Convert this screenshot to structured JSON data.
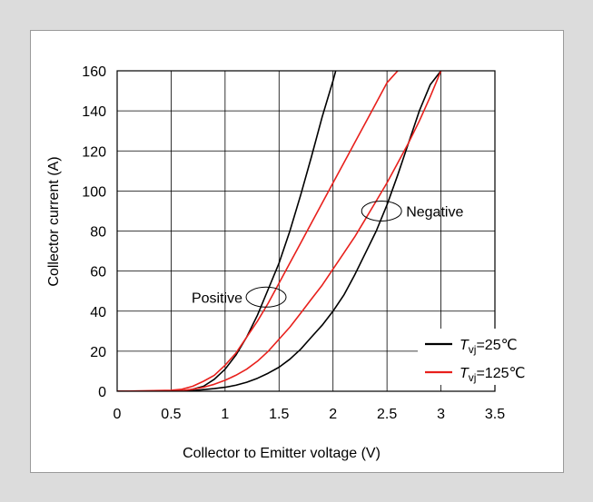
{
  "chart_data": {
    "type": "line",
    "xlabel": "Collector to Emitter voltage (V)",
    "ylabel": "Collector current (A)",
    "xlim": [
      0,
      3.5
    ],
    "ylim": [
      0,
      160
    ],
    "x_ticks": [
      "0",
      "0.5",
      "1",
      "1.5",
      "2",
      "2.5",
      "3",
      "3.5"
    ],
    "y_ticks": [
      "0",
      "20",
      "40",
      "60",
      "80",
      "100",
      "120",
      "140",
      "160"
    ],
    "grid": true,
    "legend_position": "bottom-right",
    "series": [
      {
        "name": "Tvj=25°C",
        "color": "#000000",
        "points": [
          [
            0,
            0
          ],
          [
            0.5,
            0
          ],
          [
            0.6,
            0.2
          ],
          [
            0.7,
            1
          ],
          [
            0.8,
            2.5
          ],
          [
            0.9,
            6
          ],
          [
            1.0,
            11
          ],
          [
            1.1,
            18
          ],
          [
            1.2,
            27
          ],
          [
            1.3,
            38
          ],
          [
            1.4,
            51
          ],
          [
            1.5,
            64
          ],
          [
            1.6,
            80
          ],
          [
            1.7,
            98
          ],
          [
            1.8,
            117
          ],
          [
            1.9,
            137
          ],
          [
            2.0,
            155
          ],
          [
            2.05,
            165
          ]
        ]
      },
      {
        "name": "Tvj=25°C",
        "color": "#000000",
        "points": [
          [
            0,
            0
          ],
          [
            0.6,
            0
          ],
          [
            0.7,
            0.3
          ],
          [
            0.8,
            0.8
          ],
          [
            0.9,
            1.3
          ],
          [
            1.0,
            2
          ],
          [
            1.1,
            3
          ],
          [
            1.2,
            4.5
          ],
          [
            1.3,
            6.5
          ],
          [
            1.4,
            9
          ],
          [
            1.5,
            12
          ],
          [
            1.6,
            16
          ],
          [
            1.7,
            21
          ],
          [
            1.8,
            27
          ],
          [
            1.9,
            33
          ],
          [
            2.0,
            40
          ],
          [
            2.1,
            48
          ],
          [
            2.2,
            58
          ],
          [
            2.3,
            69
          ],
          [
            2.4,
            80
          ],
          [
            2.5,
            93
          ],
          [
            2.6,
            108
          ],
          [
            2.7,
            124
          ],
          [
            2.8,
            140
          ],
          [
            2.9,
            153
          ],
          [
            3.0,
            160
          ]
        ]
      },
      {
        "name": "Tvj=125°C",
        "color": "#e8201c",
        "points": [
          [
            0,
            0
          ],
          [
            0.5,
            0.5
          ],
          [
            0.6,
            1
          ],
          [
            0.7,
            2.5
          ],
          [
            0.8,
            5
          ],
          [
            0.9,
            8
          ],
          [
            1.0,
            13
          ],
          [
            1.1,
            19
          ],
          [
            1.2,
            27
          ],
          [
            1.3,
            35
          ],
          [
            1.4,
            44
          ],
          [
            1.5,
            54
          ],
          [
            1.6,
            64
          ],
          [
            1.7,
            74
          ],
          [
            1.8,
            84
          ],
          [
            1.9,
            94
          ],
          [
            2.0,
            104
          ],
          [
            2.1,
            114
          ],
          [
            2.2,
            124
          ],
          [
            2.3,
            134
          ],
          [
            2.4,
            144
          ],
          [
            2.5,
            154
          ],
          [
            2.6,
            160
          ]
        ]
      },
      {
        "name": "Tvj=125°C",
        "color": "#e8201c",
        "points": [
          [
            0,
            0
          ],
          [
            0.5,
            0
          ],
          [
            0.6,
            0.3
          ],
          [
            0.7,
            1
          ],
          [
            0.8,
            2
          ],
          [
            0.9,
            3.5
          ],
          [
            1.0,
            5.5
          ],
          [
            1.1,
            8
          ],
          [
            1.2,
            11
          ],
          [
            1.3,
            15
          ],
          [
            1.4,
            20
          ],
          [
            1.5,
            26
          ],
          [
            1.6,
            32
          ],
          [
            1.7,
            39
          ],
          [
            1.8,
            46
          ],
          [
            1.9,
            53
          ],
          [
            2.0,
            61
          ],
          [
            2.1,
            69
          ],
          [
            2.2,
            77
          ],
          [
            2.3,
            86
          ],
          [
            2.4,
            95
          ],
          [
            2.5,
            104
          ],
          [
            2.6,
            114
          ],
          [
            2.7,
            124
          ],
          [
            2.8,
            135
          ],
          [
            2.9,
            147
          ],
          [
            3.0,
            160
          ]
        ]
      }
    ],
    "legend": [
      {
        "symbol": "T",
        "subscript": "vj",
        "value": "=25℃",
        "color": "#000000"
      },
      {
        "symbol": "T",
        "subscript": "vj",
        "value": "=125℃",
        "color": "#e8201c"
      }
    ],
    "annotations": [
      {
        "text": "Positive",
        "x": 1.38,
        "y": 47
      },
      {
        "text": "Negative",
        "x": 2.45,
        "y": 90
      }
    ]
  }
}
